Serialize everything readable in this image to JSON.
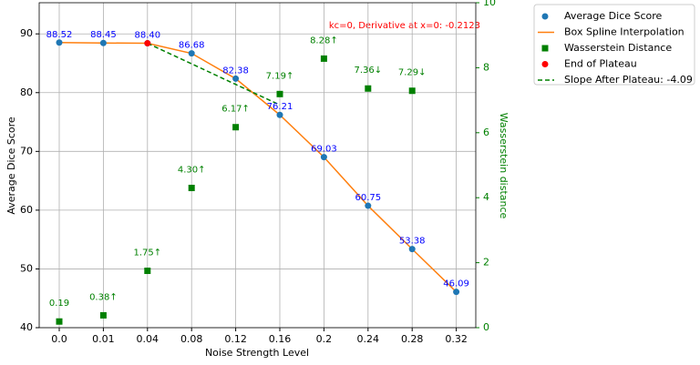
{
  "chart_data": {
    "type": "line",
    "categories": [
      "0.0",
      "0.01",
      "0.04",
      "0.08",
      "0.12",
      "0.16",
      "0.2",
      "0.24",
      "0.28",
      "0.32"
    ],
    "x_label": "Noise Strength Level",
    "y_label": "Average Dice Score",
    "y2_label": "Wasserstein distance",
    "annotation": "kc=0, Derivative at x=0: -0.2123",
    "ylim": [
      40,
      95.3
    ],
    "yticks": [
      40,
      50,
      60,
      70,
      80,
      90
    ],
    "y2lim": [
      0,
      10
    ],
    "y2ticks": [
      0,
      2,
      4,
      6,
      8,
      10
    ],
    "grid": true,
    "series": [
      {
        "name": "Average Dice Score",
        "color": "#1f77b4",
        "style": "marker",
        "values": [
          88.52,
          88.45,
          88.4,
          86.68,
          82.38,
          76.21,
          69.03,
          60.75,
          53.38,
          46.09
        ],
        "value_labels": [
          "88.52",
          "88.45",
          "88.40",
          "86.68",
          "82.38",
          "76.21",
          "69.03",
          "60.75",
          "53.38",
          "46.09"
        ]
      },
      {
        "name": "Box Spline Interpolation",
        "color": "#ff7f0e",
        "style": "line",
        "values": [
          88.52,
          88.45,
          88.4,
          86.68,
          82.38,
          76.21,
          69.03,
          60.75,
          53.38,
          46.09
        ]
      },
      {
        "name": "Wasserstein Distance",
        "color": "#008000",
        "style": "square",
        "axis": "y2",
        "values": [
          0.19,
          0.38,
          1.75,
          4.3,
          6.17,
          7.19,
          8.28,
          7.36,
          7.29,
          null
        ],
        "value_labels": [
          "0.19",
          "0.38↑",
          "1.75↑",
          "4.30↑",
          "6.17↑",
          "7.19↑",
          "8.28↑",
          "7.36↓",
          "7.29↓",
          null
        ]
      },
      {
        "name": "End of Plateau",
        "color": "#ff0000",
        "style": "marker",
        "values": [
          null,
          null,
          88.4,
          null,
          null,
          null,
          null,
          null,
          null,
          null
        ]
      },
      {
        "name": "Slope After Plateau: -4.09",
        "color": "#008000",
        "style": "dashed",
        "values": [
          null,
          null,
          88.4,
          84.9,
          81.4,
          77.9,
          null,
          null,
          null,
          null
        ]
      }
    ]
  }
}
